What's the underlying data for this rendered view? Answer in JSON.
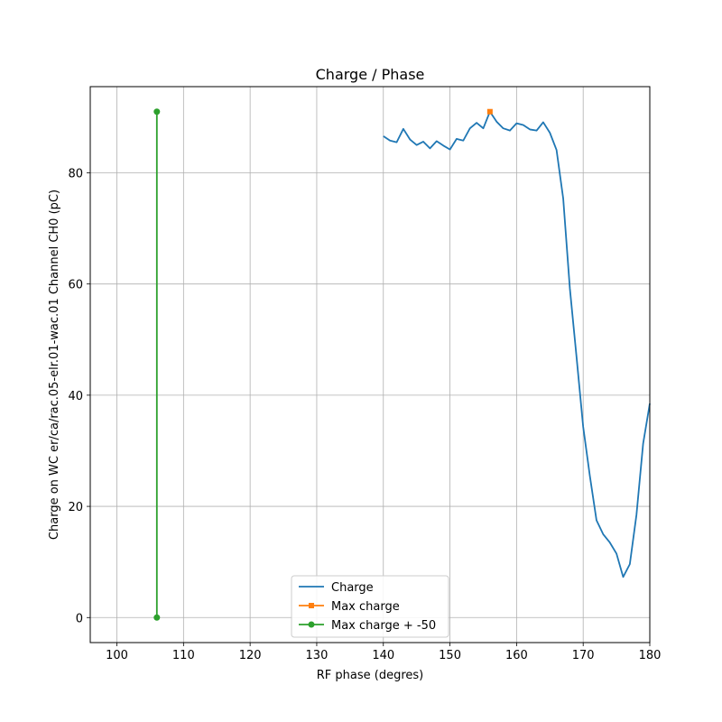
{
  "chart_data": {
    "type": "line",
    "title": "Charge / Phase",
    "xlabel": "RF phase (degres)",
    "ylabel": "Charge on WC er/ca/rac.05-elr.01-wac.01 Channel CH0 (pC)",
    "xlim": [
      96,
      180
    ],
    "ylim": [
      -4.5,
      95.5
    ],
    "x_ticks": [
      100,
      110,
      120,
      130,
      140,
      150,
      160,
      170,
      180
    ],
    "y_ticks": [
      0,
      20,
      40,
      60,
      80
    ],
    "grid": true,
    "legend_position": "bottom-center",
    "series": [
      {
        "name": "Charge",
        "color": "#1f77b4",
        "marker": "none",
        "x": [
          140,
          141,
          142,
          143,
          144,
          145,
          146,
          147,
          148,
          149,
          150,
          151,
          152,
          153,
          154,
          155,
          156,
          157,
          158,
          159,
          160,
          161,
          162,
          163,
          164,
          165,
          166,
          167,
          168,
          169,
          170,
          171,
          172,
          173,
          174,
          175,
          176,
          177,
          178,
          179,
          180
        ],
        "y": [
          86.6,
          85.8,
          85.5,
          87.9,
          86.0,
          85.0,
          85.6,
          84.4,
          85.7,
          84.9,
          84.2,
          86.1,
          85.8,
          88.0,
          89.0,
          88.0,
          91.0,
          89.2,
          88.0,
          87.6,
          88.9,
          88.6,
          87.8,
          87.6,
          89.1,
          87.2,
          84.1,
          75.4,
          59.2,
          46.9,
          34.3,
          25.5,
          17.5,
          15.0,
          13.5,
          11.5,
          7.3,
          9.6,
          18.5,
          31.3,
          38.5
        ]
      },
      {
        "name": "Max charge",
        "color": "#ff7f0e",
        "marker": "x",
        "x": [
          156
        ],
        "y": [
          91.0
        ]
      },
      {
        "name": "Max charge + -50",
        "color": "#2ca02c",
        "marker": "circle",
        "x": [
          106,
          106
        ],
        "y": [
          91.0,
          0
        ]
      }
    ]
  }
}
